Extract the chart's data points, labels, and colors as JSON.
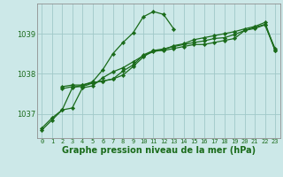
{
  "bg_color": "#cce8e8",
  "grid_color": "#a0c8c8",
  "line_color": "#1a6b1a",
  "marker_color": "#1a6b1a",
  "xlabel": "Graphe pression niveau de la mer (hPa)",
  "xlabel_fontsize": 7.0,
  "xlim": [
    -0.5,
    23.5
  ],
  "ylim": [
    1036.4,
    1039.75
  ],
  "yticks": [
    1037,
    1038,
    1039
  ],
  "xticks": [
    0,
    1,
    2,
    3,
    4,
    5,
    6,
    7,
    8,
    9,
    10,
    11,
    12,
    13,
    14,
    15,
    16,
    17,
    18,
    19,
    20,
    21,
    22,
    23
  ],
  "series": [
    {
      "x": [
        0,
        1,
        2,
        3,
        4,
        5,
        6,
        7,
        8,
        9,
        10,
        11,
        12,
        13,
        14,
        15,
        16,
        17,
        18,
        19,
        20,
        21,
        22,
        23
      ],
      "y": [
        1036.65,
        1036.9,
        1037.1,
        1037.15,
        1037.65,
        1037.7,
        1037.9,
        1038.05,
        1038.15,
        1038.3,
        1038.45,
        1038.55,
        1038.6,
        1038.7,
        1038.75,
        1038.85,
        1038.9,
        1038.95,
        1039.0,
        1039.05,
        1039.12,
        1039.18,
        1039.28,
        1038.58
      ],
      "marker": "D",
      "markersize": 2.2,
      "linewidth": 0.9
    },
    {
      "x": [
        0,
        1,
        2,
        3,
        4,
        5,
        6,
        7,
        8,
        9,
        10,
        11,
        12,
        13
      ],
      "y": [
        1036.6,
        1036.85,
        1037.1,
        1037.65,
        1037.72,
        1037.8,
        1038.1,
        1038.5,
        1038.78,
        1039.02,
        1039.42,
        1039.55,
        1039.48,
        1039.12
      ],
      "marker": "D",
      "markersize": 2.2,
      "linewidth": 0.9
    },
    {
      "x": [
        2,
        3,
        4,
        5,
        6,
        7,
        8,
        9,
        10,
        11,
        12,
        13,
        14,
        15,
        16,
        17,
        18,
        19,
        20,
        21,
        22,
        23
      ],
      "y": [
        1037.68,
        1037.72,
        1037.72,
        1037.78,
        1037.82,
        1037.87,
        1037.97,
        1038.18,
        1038.42,
        1038.58,
        1038.58,
        1038.63,
        1038.68,
        1038.73,
        1038.73,
        1038.78,
        1038.83,
        1038.88,
        1039.08,
        1039.13,
        1039.22,
        1038.63
      ],
      "marker": "D",
      "markersize": 2.2,
      "linewidth": 0.9
    },
    {
      "x": [
        2,
        3,
        4,
        5,
        6,
        7,
        8,
        9,
        10,
        11,
        12,
        13,
        14,
        15,
        16,
        17,
        18,
        19,
        20,
        21,
        22,
        23
      ],
      "y": [
        1037.63,
        1037.68,
        1037.68,
        1037.77,
        1037.82,
        1037.87,
        1038.07,
        1038.22,
        1038.47,
        1038.58,
        1038.62,
        1038.68,
        1038.73,
        1038.78,
        1038.82,
        1038.88,
        1038.9,
        1038.98,
        1039.08,
        1039.16,
        1039.23,
        1038.58
      ],
      "marker": "D",
      "markersize": 2.2,
      "linewidth": 0.9
    }
  ]
}
